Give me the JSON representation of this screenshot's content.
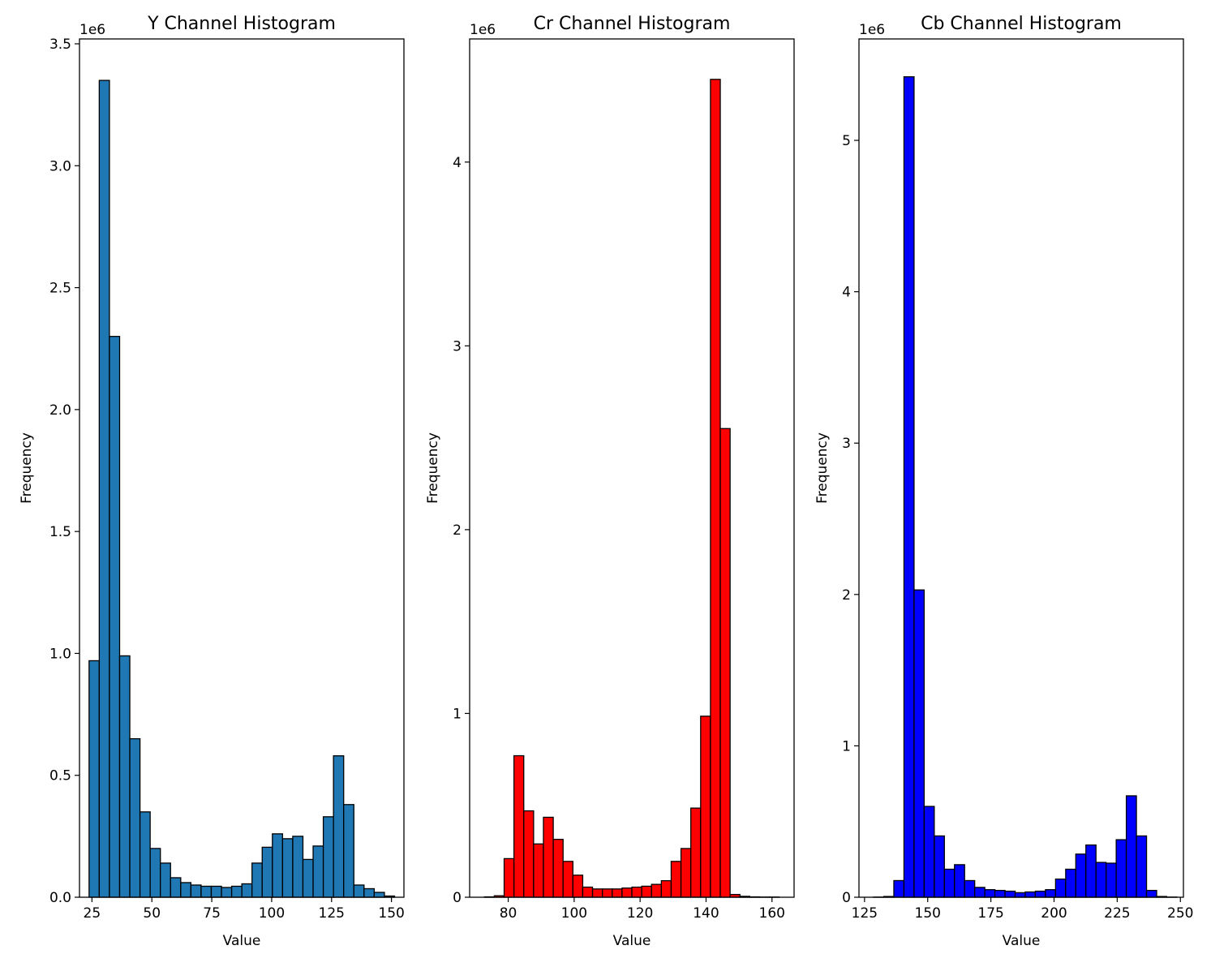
{
  "chart_data": [
    {
      "type": "bar",
      "subtype": "histogram",
      "title": "Y Channel Histogram",
      "xlabel": "Value",
      "ylabel": "Frequency",
      "offset_text": "1e6",
      "color": "#1f77b4",
      "edgecolor": "#000000",
      "xlim": [
        19.8,
        155.2
      ],
      "ylim": [
        0,
        3.52
      ],
      "xticks": [
        25,
        50,
        75,
        100,
        125,
        150
      ],
      "xtick_labels": [
        "25",
        "50",
        "75",
        "100",
        "125",
        "150"
      ],
      "yticks": [
        0,
        0.5,
        1.0,
        1.5,
        2.0,
        2.5,
        3.0,
        3.5
      ],
      "ytick_labels": [
        "0.0",
        "0.5",
        "1.0",
        "1.5",
        "2.0",
        "2.5",
        "3.0",
        "3.5"
      ],
      "bin_start": 23.8,
      "bin_width": 4.25,
      "values": [
        0.97,
        3.35,
        2.3,
        0.99,
        0.65,
        0.35,
        0.2,
        0.14,
        0.08,
        0.06,
        0.05,
        0.045,
        0.045,
        0.04,
        0.045,
        0.055,
        0.14,
        0.205,
        0.26,
        0.24,
        0.25,
        0.155,
        0.21,
        0.33,
        0.58,
        0.38,
        0.05,
        0.035,
        0.02,
        0.005
      ]
    },
    {
      "type": "bar",
      "subtype": "histogram",
      "title": "Cr Channel Histogram",
      "xlabel": "Value",
      "ylabel": "Frequency",
      "offset_text": "1e6",
      "color": "#ff0000",
      "edgecolor": "#000000",
      "xlim": [
        68.3,
        166.7
      ],
      "ylim": [
        0,
        4.67
      ],
      "xticks": [
        80,
        100,
        120,
        140,
        160
      ],
      "xtick_labels": [
        "80",
        "100",
        "120",
        "140",
        "160"
      ],
      "yticks": [
        0,
        1,
        2,
        3,
        4
      ],
      "ytick_labels": [
        "0",
        "1",
        "2",
        "3",
        "4"
      ],
      "bin_start": 72.8,
      "bin_width": 2.98,
      "values": [
        0.002,
        0.008,
        0.21,
        0.77,
        0.47,
        0.29,
        0.435,
        0.315,
        0.195,
        0.12,
        0.055,
        0.045,
        0.045,
        0.045,
        0.05,
        0.055,
        0.06,
        0.07,
        0.09,
        0.195,
        0.265,
        0.485,
        0.985,
        4.45,
        2.55,
        0.015,
        0.005,
        0.002,
        0.001,
        0.001
      ]
    },
    {
      "type": "bar",
      "subtype": "histogram",
      "title": "Cb Channel Histogram",
      "xlabel": "Value",
      "ylabel": "Frequency",
      "offset_text": "1e6",
      "color": "#0000ff",
      "edgecolor": "#000000",
      "xlim": [
        122.8,
        251.2
      ],
      "ylim": [
        0,
        5.67
      ],
      "xticks": [
        125,
        150,
        175,
        200,
        225,
        250
      ],
      "xtick_labels": [
        "125",
        "150",
        "175",
        "200",
        "225",
        "250"
      ],
      "yticks": [
        0,
        1,
        2,
        3,
        4,
        5
      ],
      "ytick_labels": [
        "0",
        "1",
        "2",
        "3",
        "4",
        "5"
      ],
      "bin_start": 128.6,
      "bin_width": 4.0,
      "values": [
        0.001,
        0.005,
        0.11,
        5.42,
        2.03,
        0.6,
        0.405,
        0.185,
        0.215,
        0.11,
        0.065,
        0.05,
        0.045,
        0.04,
        0.03,
        0.035,
        0.04,
        0.05,
        0.12,
        0.185,
        0.285,
        0.345,
        0.23,
        0.225,
        0.38,
        0.67,
        0.405,
        0.045,
        0.005,
        0.001
      ]
    }
  ]
}
